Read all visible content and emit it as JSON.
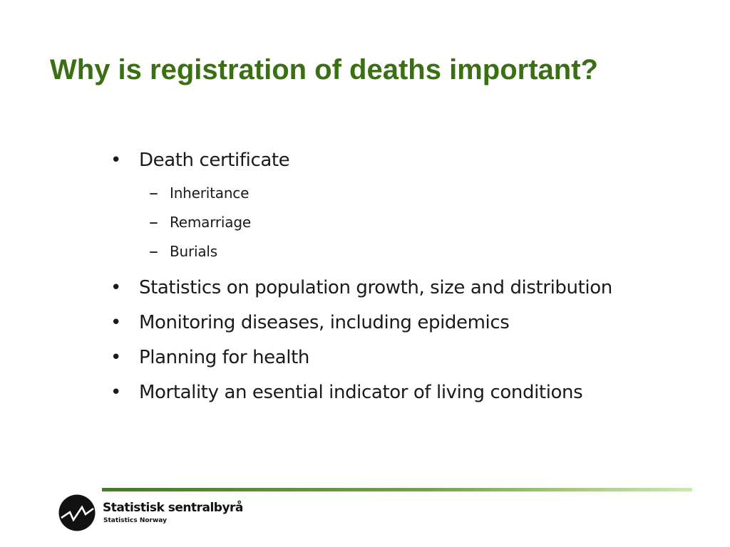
{
  "slide": {
    "title": "Why is registration of deaths important?",
    "bullets": [
      {
        "text": "Death certificate",
        "subitems": [
          "Inheritance",
          "Remarriage",
          "Burials"
        ]
      },
      {
        "text": "Statistics on population growth, size and distribution"
      },
      {
        "text": "Monitoring diseases, including epidemics"
      },
      {
        "text": "Planning for health"
      },
      {
        "text": "Mortality an esential indicator of living conditions"
      }
    ],
    "bullet_marker": "•",
    "subbullet_marker": "–"
  },
  "footer": {
    "logo_icon": "statistics-norway-logo-icon",
    "org_name": "Statistisk sentralbyrå",
    "org_name_en": "Statistics Norway"
  },
  "colors": {
    "title": "#3b6f14",
    "rule_start": "#3e7e1c",
    "rule_end": "#c9ee9e"
  }
}
